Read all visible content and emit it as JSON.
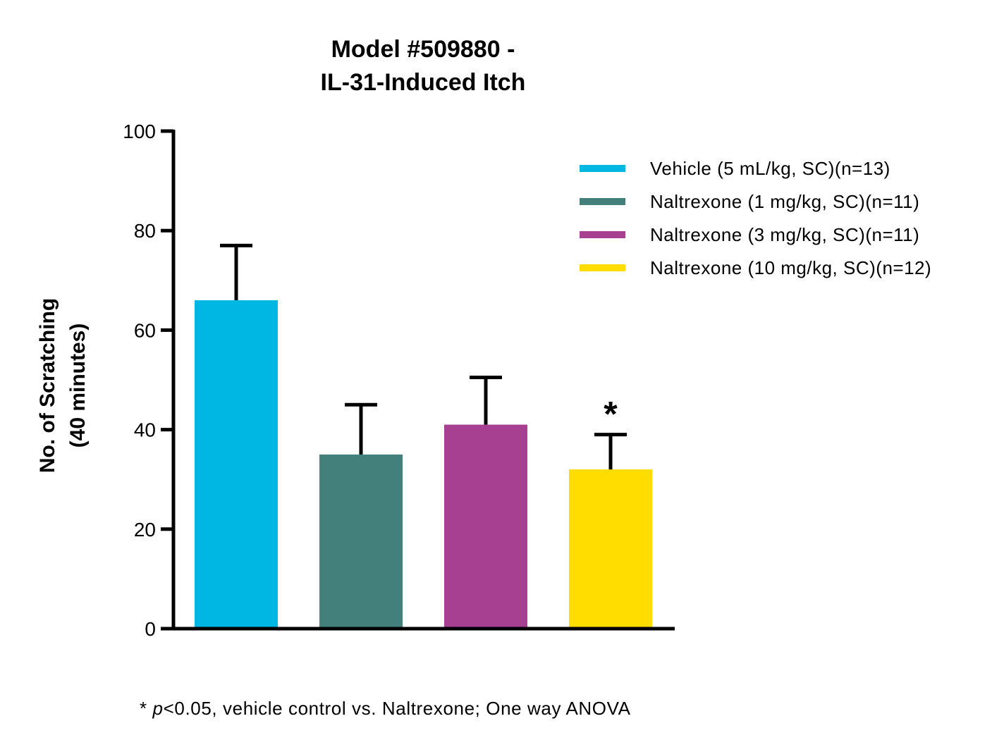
{
  "chart_data": {
    "type": "bar",
    "title_lines": [
      "Model #509880 -",
      "IL-31-Induced Itch"
    ],
    "ylabel_lines": [
      "No. of Scratching",
      "(40 minutes)"
    ],
    "xlabel": "",
    "ylim": [
      0,
      100
    ],
    "yticks": [
      0,
      20,
      40,
      60,
      80,
      100
    ],
    "series": [
      {
        "name": "Vehicle (5 mL/kg, SC)(n=13)",
        "value": 66,
        "error": 11,
        "color": "#00B6E2",
        "significance": ""
      },
      {
        "name": "Naltrexone (1 mg/kg, SC)(n=11)",
        "value": 35,
        "error": 10,
        "color": "#43807C",
        "significance": ""
      },
      {
        "name": "Naltrexone (3 mg/kg, SC)(n=11)",
        "value": 41,
        "error": 9.5,
        "color": "#A84092",
        "significance": ""
      },
      {
        "name": "Naltrexone (10 mg/kg, SC)(n=12)",
        "value": 32,
        "error": 7,
        "color": "#FFDD00",
        "significance": "*"
      }
    ],
    "legend_position": "top-right",
    "grid": false
  },
  "footnote": {
    "prefix": "* ",
    "italic": "p",
    "rest": "<0.05, vehicle control vs. Naltrexone; One way ANOVA"
  }
}
